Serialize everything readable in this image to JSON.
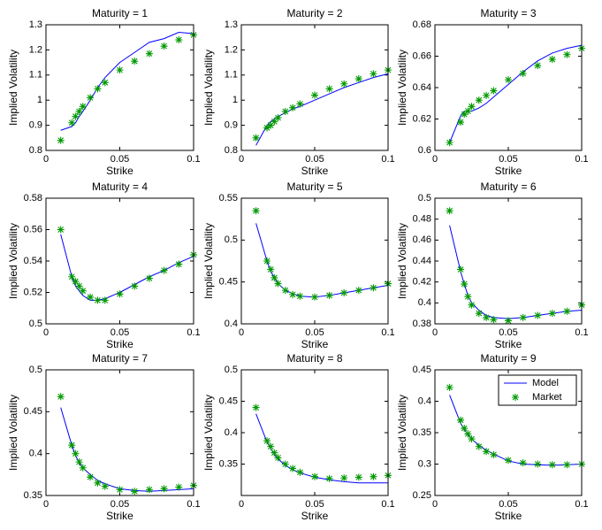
{
  "chart_data": [
    {
      "type": "line",
      "title": "Maturity = 1",
      "xlabel": "Strike",
      "ylabel": "Implied Volatility",
      "x": [
        0.01,
        0.0175,
        0.02,
        0.0225,
        0.025,
        0.03,
        0.035,
        0.04,
        0.05,
        0.06,
        0.07,
        0.08,
        0.09,
        0.1
      ],
      "xlim": [
        0,
        0.1
      ],
      "xticks": [
        0,
        0.05,
        0.1
      ],
      "ylim": [
        0.8,
        1.3
      ],
      "yticks": [
        0.8,
        0.9,
        1,
        1.1,
        1.2,
        1.3
      ],
      "series": [
        {
          "color": "#0000ff",
          "mode": "line",
          "values": [
            0.88,
            0.895,
            0.91,
            0.935,
            0.955,
            1.0,
            1.05,
            1.09,
            1.15,
            1.19,
            1.23,
            1.245,
            1.27,
            1.265
          ]
        },
        {
          "color": "#009900",
          "mode": "markers",
          "values": [
            0.84,
            0.91,
            0.935,
            0.955,
            0.975,
            1.01,
            1.045,
            1.07,
            1.12,
            1.155,
            1.185,
            1.215,
            1.24,
            1.26
          ]
        }
      ]
    },
    {
      "type": "line",
      "title": "Maturity = 2",
      "xlabel": "Strike",
      "ylabel": "Implied Volatility",
      "x": [
        0.01,
        0.0175,
        0.02,
        0.0225,
        0.025,
        0.03,
        0.035,
        0.04,
        0.05,
        0.06,
        0.07,
        0.08,
        0.09,
        0.1
      ],
      "xlim": [
        0,
        0.1
      ],
      "xticks": [
        0,
        0.05,
        0.1
      ],
      "ylim": [
        0.8,
        1.3
      ],
      "yticks": [
        0.8,
        0.9,
        1,
        1.1,
        1.2,
        1.3
      ],
      "series": [
        {
          "color": "#0000ff",
          "mode": "line",
          "values": [
            0.82,
            0.9,
            0.915,
            0.925,
            0.935,
            0.95,
            0.965,
            0.975,
            1.0,
            1.025,
            1.05,
            1.07,
            1.09,
            1.105
          ]
        },
        {
          "color": "#009900",
          "mode": "markers",
          "values": [
            0.85,
            0.89,
            0.9,
            0.915,
            0.93,
            0.955,
            0.97,
            0.985,
            1.02,
            1.045,
            1.065,
            1.085,
            1.105,
            1.12
          ]
        }
      ]
    },
    {
      "type": "line",
      "title": "Maturity = 3",
      "xlabel": "Strike",
      "ylabel": "Implied Volatility",
      "x": [
        0.01,
        0.0175,
        0.02,
        0.0225,
        0.025,
        0.03,
        0.035,
        0.04,
        0.05,
        0.06,
        0.07,
        0.08,
        0.09,
        0.1
      ],
      "xlim": [
        0,
        0.1
      ],
      "xticks": [
        0,
        0.05,
        0.1
      ],
      "ylim": [
        0.6,
        0.68
      ],
      "yticks": [
        0.6,
        0.62,
        0.64,
        0.66,
        0.68
      ],
      "series": [
        {
          "color": "#0000ff",
          "mode": "line",
          "values": [
            0.605,
            0.622,
            0.625,
            0.625,
            0.625,
            0.627,
            0.63,
            0.634,
            0.642,
            0.65,
            0.657,
            0.662,
            0.665,
            0.667
          ]
        },
        {
          "color": "#009900",
          "mode": "markers",
          "values": [
            0.605,
            0.618,
            0.623,
            0.625,
            0.628,
            0.632,
            0.635,
            0.638,
            0.645,
            0.649,
            0.654,
            0.658,
            0.661,
            0.665
          ]
        }
      ]
    },
    {
      "type": "line",
      "title": "Maturity = 4",
      "xlabel": "Strike",
      "ylabel": "Implied Volatility",
      "x": [
        0.01,
        0.0175,
        0.02,
        0.0225,
        0.025,
        0.03,
        0.035,
        0.04,
        0.05,
        0.06,
        0.07,
        0.08,
        0.09,
        0.1
      ],
      "xlim": [
        0,
        0.1
      ],
      "xticks": [
        0,
        0.05,
        0.1
      ],
      "ylim": [
        0.5,
        0.58
      ],
      "yticks": [
        0.5,
        0.52,
        0.54,
        0.56,
        0.58
      ],
      "series": [
        {
          "color": "#0000ff",
          "mode": "line",
          "values": [
            0.557,
            0.53,
            0.524,
            0.521,
            0.518,
            0.515,
            0.515,
            0.516,
            0.52,
            0.525,
            0.53,
            0.534,
            0.539,
            0.543
          ]
        },
        {
          "color": "#009900",
          "mode": "markers",
          "values": [
            0.56,
            0.53,
            0.527,
            0.524,
            0.521,
            0.517,
            0.515,
            0.515,
            0.519,
            0.524,
            0.529,
            0.534,
            0.538,
            0.544
          ]
        }
      ]
    },
    {
      "type": "line",
      "title": "Maturity = 5",
      "xlabel": "Strike",
      "ylabel": "Implied Volatility",
      "x": [
        0.01,
        0.0175,
        0.02,
        0.0225,
        0.025,
        0.03,
        0.035,
        0.04,
        0.05,
        0.06,
        0.07,
        0.08,
        0.09,
        0.1
      ],
      "xlim": [
        0,
        0.1
      ],
      "xticks": [
        0,
        0.05,
        0.1
      ],
      "ylim": [
        0.4,
        0.55
      ],
      "yticks": [
        0.4,
        0.45,
        0.5,
        0.55
      ],
      "series": [
        {
          "color": "#0000ff",
          "mode": "line",
          "values": [
            0.52,
            0.475,
            0.463,
            0.455,
            0.448,
            0.44,
            0.436,
            0.433,
            0.432,
            0.434,
            0.437,
            0.44,
            0.443,
            0.446
          ]
        },
        {
          "color": "#009900",
          "mode": "markers",
          "values": [
            0.535,
            0.475,
            0.465,
            0.455,
            0.448,
            0.44,
            0.435,
            0.433,
            0.432,
            0.434,
            0.437,
            0.44,
            0.443,
            0.448
          ]
        }
      ]
    },
    {
      "type": "line",
      "title": "Maturity = 6",
      "xlabel": "Strike",
      "ylabel": "Implied Volatility",
      "x": [
        0.01,
        0.0175,
        0.02,
        0.0225,
        0.025,
        0.03,
        0.035,
        0.04,
        0.05,
        0.06,
        0.07,
        0.08,
        0.09,
        0.1
      ],
      "xlim": [
        0,
        0.1
      ],
      "xticks": [
        0,
        0.05,
        0.1
      ],
      "ylim": [
        0.38,
        0.5
      ],
      "yticks": [
        0.38,
        0.4,
        0.42,
        0.44,
        0.46,
        0.48,
        0.5
      ],
      "series": [
        {
          "color": "#0000ff",
          "mode": "line",
          "values": [
            0.474,
            0.43,
            0.418,
            0.407,
            0.4,
            0.393,
            0.388,
            0.386,
            0.385,
            0.386,
            0.388,
            0.39,
            0.392,
            0.393
          ]
        },
        {
          "color": "#009900",
          "mode": "markers",
          "values": [
            0.488,
            0.432,
            0.418,
            0.406,
            0.398,
            0.39,
            0.386,
            0.384,
            0.383,
            0.386,
            0.388,
            0.39,
            0.392,
            0.398
          ]
        }
      ]
    },
    {
      "type": "line",
      "title": "Maturity = 7",
      "xlabel": "Strike",
      "ylabel": "Implied Volatility",
      "x": [
        0.01,
        0.0175,
        0.02,
        0.0225,
        0.025,
        0.03,
        0.035,
        0.04,
        0.05,
        0.06,
        0.07,
        0.08,
        0.09,
        0.1
      ],
      "xlim": [
        0,
        0.1
      ],
      "xticks": [
        0,
        0.05,
        0.1
      ],
      "ylim": [
        0.35,
        0.5
      ],
      "yticks": [
        0.35,
        0.4,
        0.45,
        0.5
      ],
      "series": [
        {
          "color": "#0000ff",
          "mode": "line",
          "values": [
            0.455,
            0.41,
            0.398,
            0.389,
            0.383,
            0.375,
            0.368,
            0.364,
            0.358,
            0.356,
            0.355,
            0.356,
            0.357,
            0.358
          ]
        },
        {
          "color": "#009900",
          "mode": "markers",
          "values": [
            0.468,
            0.41,
            0.4,
            0.39,
            0.383,
            0.372,
            0.365,
            0.361,
            0.357,
            0.355,
            0.357,
            0.358,
            0.36,
            0.362
          ]
        }
      ]
    },
    {
      "type": "line",
      "title": "Maturity = 8",
      "xlabel": "Strike",
      "ylabel": "Implied Volatility",
      "x": [
        0.01,
        0.0175,
        0.02,
        0.0225,
        0.025,
        0.03,
        0.035,
        0.04,
        0.05,
        0.06,
        0.07,
        0.08,
        0.09,
        0.1
      ],
      "xlim": [
        0,
        0.1
      ],
      "xticks": [
        0,
        0.05,
        0.1
      ],
      "ylim": [
        0.3,
        0.5
      ],
      "yticks": [
        0.35,
        0.4,
        0.45,
        0.5
      ],
      "series": [
        {
          "color": "#0000ff",
          "mode": "line",
          "values": [
            0.43,
            0.385,
            0.375,
            0.365,
            0.358,
            0.348,
            0.341,
            0.336,
            0.329,
            0.325,
            0.322,
            0.32,
            0.32,
            0.32
          ]
        },
        {
          "color": "#009900",
          "mode": "markers",
          "values": [
            0.44,
            0.387,
            0.378,
            0.368,
            0.36,
            0.35,
            0.343,
            0.337,
            0.33,
            0.327,
            0.328,
            0.329,
            0.33,
            0.332
          ]
        }
      ]
    },
    {
      "type": "line",
      "title": "Maturity = 9",
      "xlabel": "Strike",
      "ylabel": "Implied Volatility",
      "x": [
        0.01,
        0.0175,
        0.02,
        0.0225,
        0.025,
        0.03,
        0.035,
        0.04,
        0.05,
        0.06,
        0.07,
        0.08,
        0.09,
        0.1
      ],
      "xlim": [
        0,
        0.1
      ],
      "xticks": [
        0,
        0.05,
        0.1
      ],
      "ylim": [
        0.25,
        0.45
      ],
      "yticks": [
        0.25,
        0.3,
        0.35,
        0.4,
        0.45
      ],
      "legend": "upper right",
      "series": [
        {
          "name": "Model",
          "color": "#0000ff",
          "mode": "line",
          "values": [
            0.41,
            0.365,
            0.355,
            0.347,
            0.34,
            0.33,
            0.322,
            0.316,
            0.305,
            0.3,
            0.299,
            0.298,
            0.299,
            0.3
          ]
        },
        {
          "name": "Market",
          "color": "#009900",
          "mode": "markers",
          "values": [
            0.422,
            0.37,
            0.357,
            0.348,
            0.34,
            0.328,
            0.32,
            0.315,
            0.306,
            0.302,
            0.3,
            0.299,
            0.299,
            0.3
          ]
        }
      ]
    }
  ]
}
